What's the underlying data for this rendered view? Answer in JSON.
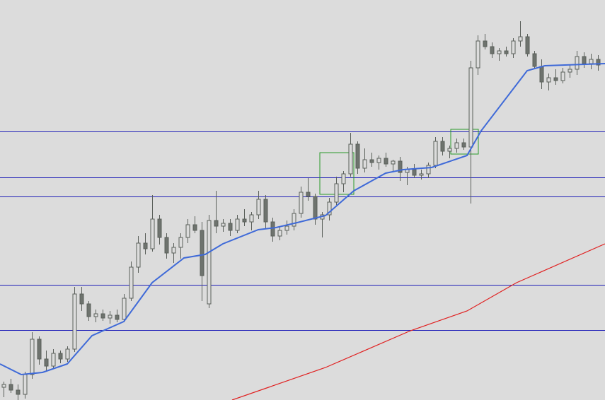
{
  "chart_data": {
    "type": "candlestick",
    "xlim": [
      -0.5,
      85
    ],
    "ylim": [
      0,
      566
    ],
    "up_color": "#dcdcdc",
    "down_color": "#6e736e",
    "wick_color": "#5a5f5a",
    "open": [
      18,
      22,
      14,
      8,
      36,
      86,
      58,
      48,
      66,
      58,
      72,
      150,
      136,
      118,
      122,
      116,
      120,
      114,
      144,
      188,
      222,
      214,
      256,
      230,
      208,
      216,
      230,
      248,
      240,
      136,
      254,
      246,
      250,
      240,
      256,
      252,
      262,
      284,
      252,
      232,
      240,
      246,
      264,
      294,
      288,
      256,
      262,
      280,
      306,
      320,
      362,
      328,
      340,
      336,
      342,
      334,
      338,
      322,
      326,
      318,
      320,
      332,
      366,
      352,
      356,
      364,
      358,
      470,
      508,
      500,
      490,
      494,
      490,
      508,
      514,
      490,
      472,
      450,
      456,
      452,
      464,
      468,
      486,
      476,
      482
    ],
    "high": [
      26,
      30,
      22,
      40,
      96,
      90,
      70,
      72,
      70,
      76,
      160,
      160,
      140,
      128,
      128,
      126,
      128,
      150,
      196,
      232,
      236,
      290,
      262,
      236,
      222,
      236,
      256,
      260,
      252,
      262,
      296,
      256,
      256,
      262,
      270,
      266,
      296,
      290,
      258,
      246,
      254,
      270,
      302,
      314,
      292,
      266,
      286,
      316,
      324,
      378,
      366,
      356,
      350,
      346,
      350,
      340,
      344,
      330,
      334,
      326,
      336,
      372,
      372,
      360,
      370,
      370,
      480,
      516,
      518,
      506,
      498,
      500,
      512,
      536,
      518,
      494,
      482,
      462,
      468,
      470,
      474,
      494,
      492,
      490,
      488
    ],
    "low": [
      4,
      10,
      0,
      2,
      30,
      50,
      40,
      44,
      52,
      54,
      68,
      126,
      112,
      110,
      112,
      108,
      110,
      110,
      140,
      180,
      206,
      210,
      220,
      200,
      194,
      200,
      222,
      236,
      140,
      130,
      236,
      238,
      232,
      236,
      246,
      240,
      256,
      242,
      224,
      226,
      234,
      240,
      258,
      282,
      248,
      230,
      254,
      276,
      294,
      316,
      320,
      322,
      330,
      326,
      330,
      322,
      310,
      304,
      314,
      312,
      314,
      328,
      346,
      342,
      350,
      354,
      278,
      460,
      496,
      484,
      480,
      486,
      484,
      500,
      486,
      470,
      440,
      438,
      446,
      448,
      456,
      460,
      470,
      468,
      466
    ],
    "close": [
      22,
      14,
      8,
      36,
      86,
      58,
      48,
      66,
      58,
      72,
      150,
      136,
      118,
      122,
      116,
      120,
      114,
      144,
      188,
      222,
      214,
      256,
      230,
      208,
      216,
      230,
      248,
      240,
      176,
      254,
      246,
      250,
      240,
      256,
      252,
      262,
      284,
      252,
      232,
      240,
      246,
      264,
      294,
      288,
      256,
      262,
      280,
      306,
      320,
      362,
      328,
      340,
      336,
      342,
      334,
      338,
      322,
      326,
      318,
      320,
      332,
      366,
      352,
      356,
      364,
      358,
      470,
      508,
      500,
      490,
      494,
      490,
      508,
      514,
      490,
      472,
      450,
      456,
      452,
      464,
      468,
      486,
      476,
      482,
      474
    ],
    "levels": {
      "color": "#1f1fb8",
      "values": [
        380,
        315,
        288,
        163,
        99
      ]
    },
    "lines": [
      {
        "color": "#3f6ad8",
        "x": [
          -0.5,
          2.5,
          5.5,
          9,
          12.5,
          17,
          21,
          25.5,
          28.5,
          31,
          36,
          38.5,
          41.5,
          45.5,
          49.5,
          54,
          56.5,
          60.5,
          65.5,
          67.5,
          74,
          76.5,
          85
        ],
        "values": [
          51,
          36,
          39,
          51,
          91,
          111,
          166,
          201,
          206,
          221,
          241,
          244,
          251,
          261,
          296,
          321,
          326,
          329,
          346,
          381,
          466,
          473,
          476
        ]
      },
      {
        "color": "#e02020",
        "x": [
          32.3,
          45.5,
          57.5,
          65.5,
          72.5,
          85
        ],
        "values": [
          0,
          46,
          98,
          126,
          166,
          221
        ]
      }
    ],
    "boxes": {
      "color": "#2a9a2a",
      "items": [
        {
          "x": [
            44.7,
            49.5
          ],
          "y": [
            291,
            350
          ]
        },
        {
          "x": [
            63.2,
            67.1
          ],
          "y": [
            348,
            383
          ]
        }
      ]
    }
  }
}
